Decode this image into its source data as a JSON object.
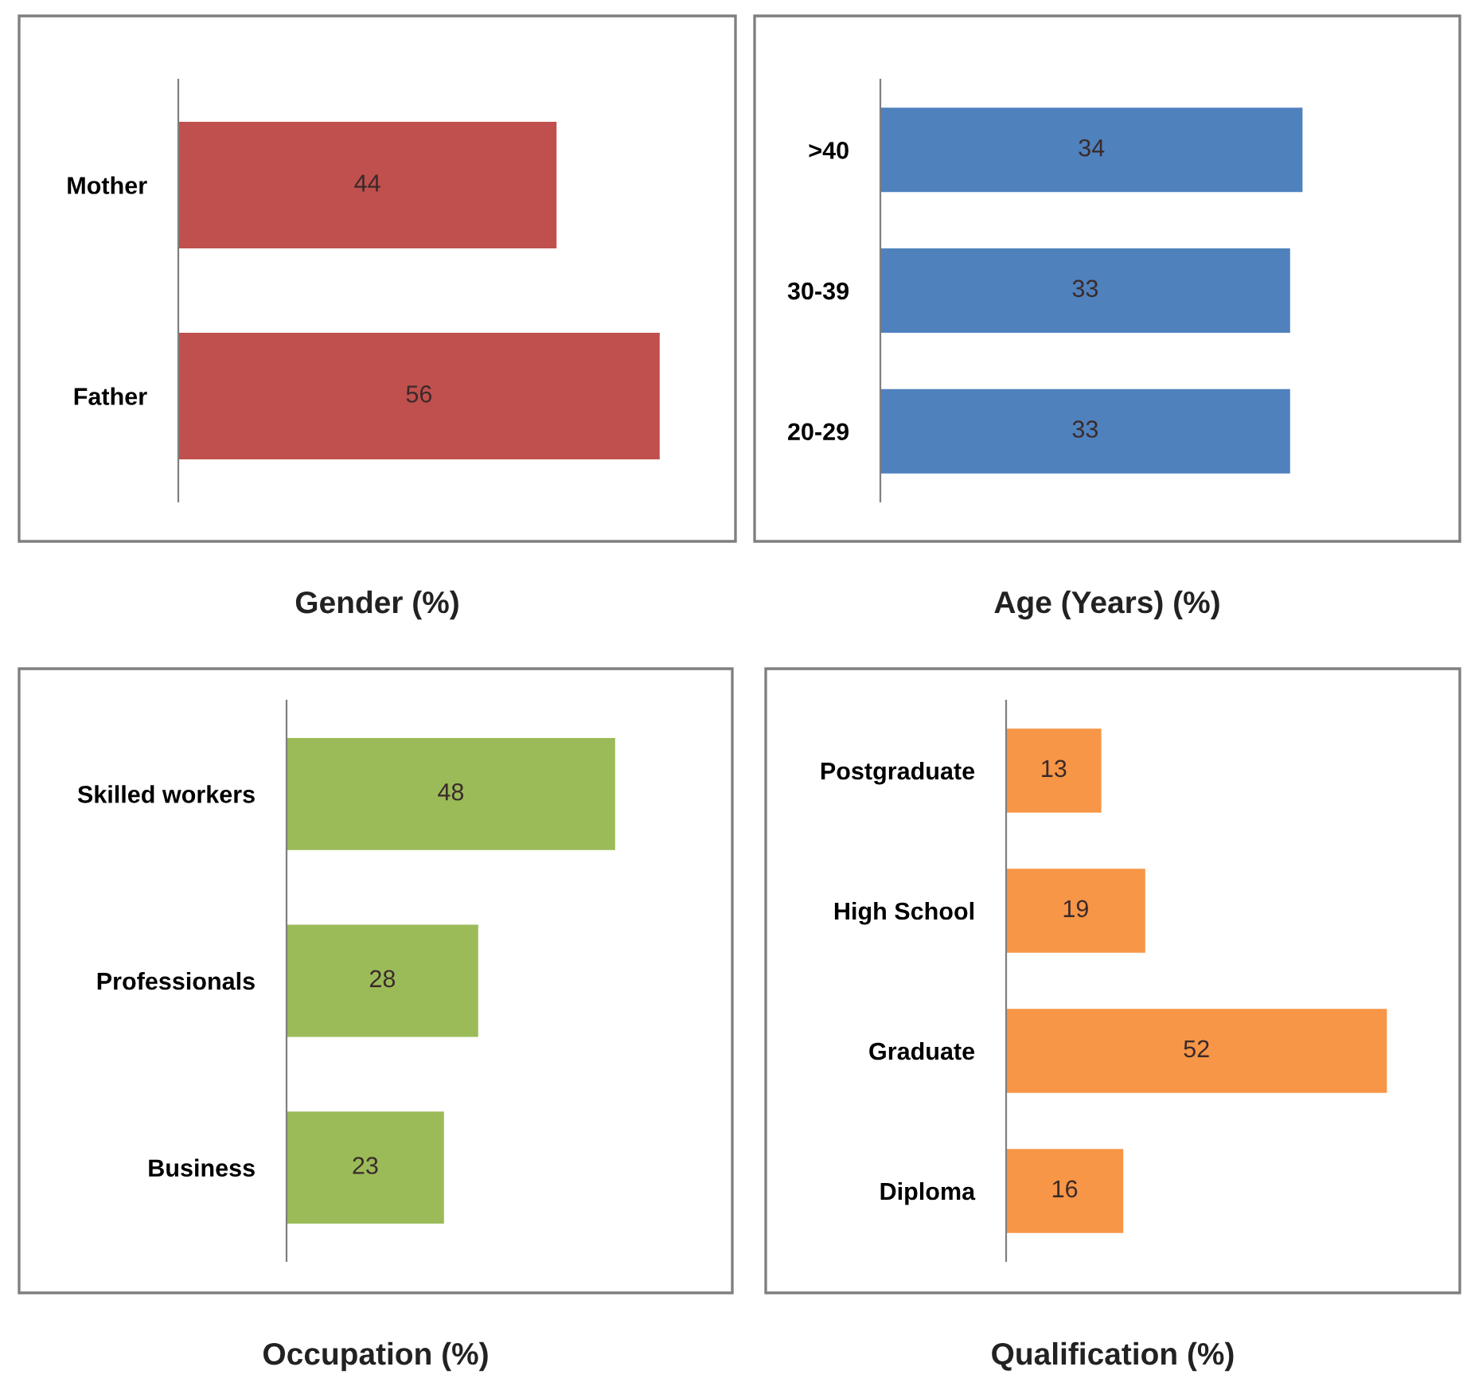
{
  "chart_data": [
    {
      "type": "bar",
      "orientation": "horizontal",
      "title": "Gender (%)",
      "categories": [
        "Mother",
        "Father"
      ],
      "values": [
        44,
        56
      ],
      "color": "#c0504d",
      "data_labels": true,
      "tick_labels": "y"
    },
    {
      "type": "bar",
      "orientation": "horizontal",
      "title": "Age (Years) (%)",
      "categories": [
        ">40",
        "30-39",
        "20-29"
      ],
      "values": [
        34,
        33,
        33
      ],
      "color": "#4f81bd",
      "data_labels": true,
      "tick_labels": "y"
    },
    {
      "type": "bar",
      "orientation": "horizontal",
      "title": "Occupation (%)",
      "categories": [
        "Skilled workers",
        "Professionals",
        "Business"
      ],
      "values": [
        48,
        28,
        23
      ],
      "color": "#9bbb59",
      "data_labels": true,
      "tick_labels": "y"
    },
    {
      "type": "bar",
      "orientation": "horizontal",
      "title": "Qualification (%)",
      "categories": [
        "Postgraduate",
        "High School",
        "Graduate",
        "Diploma"
      ],
      "values": [
        13,
        19,
        52,
        16
      ],
      "color": "#f79646",
      "data_labels": true,
      "tick_labels": "y"
    }
  ]
}
